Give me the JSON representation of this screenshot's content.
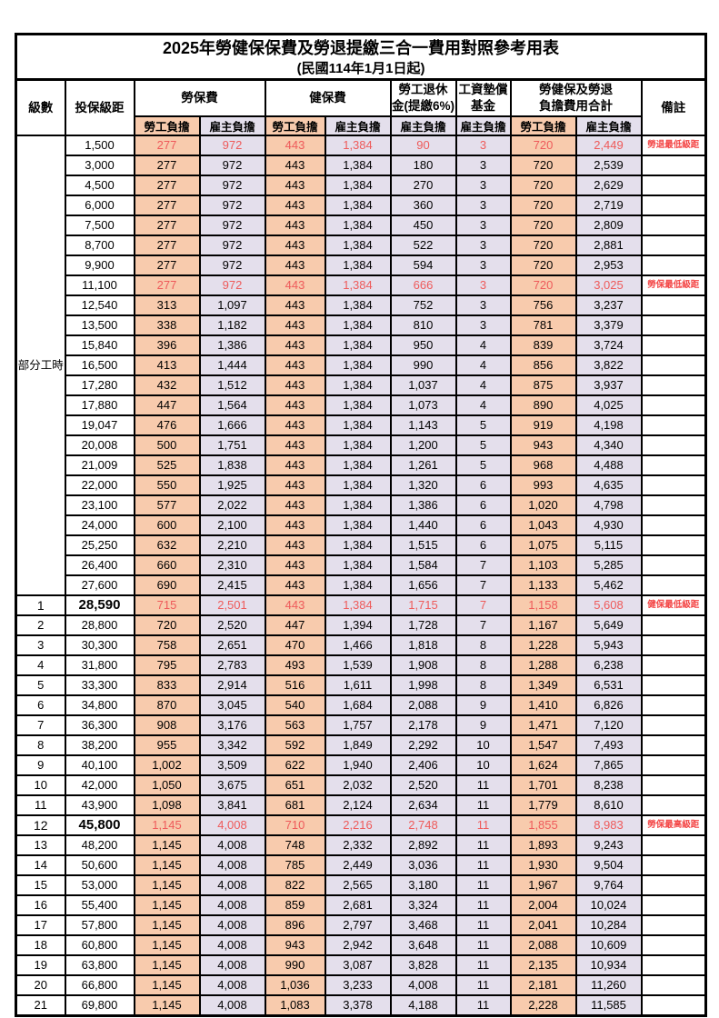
{
  "page": {
    "title": "2025年勞健保保費及勞退提繳三合一費用對照參考用表",
    "subtitle": "(民國114年1月1日起)"
  },
  "colors": {
    "orange": "#F8CBAD",
    "purple": "#E4DFEC",
    "red": "#EE5A5A",
    "remark_red": "#F34444"
  },
  "header": {
    "level": "級數",
    "bracket": "投保級距",
    "labor": "勞保費",
    "health": "健保費",
    "pension_line1": "勞工退休",
    "pension_line2": "金(提繳6%)",
    "wage_fund_line1": "工資墊償",
    "wage_fund_line2": "基金",
    "total_line1": "勞健保及勞退",
    "total_line2": "負擔費用合計",
    "note": "備註",
    "employee": "勞工負擔",
    "employer": "雇主負擔"
  },
  "part_time_label": "部分工時",
  "part_time_rowspan": 23,
  "rows": [
    {
      "level": "",
      "bracket": "1,500",
      "cells": [
        "277",
        "972",
        "443",
        "1,384",
        "90",
        "3",
        "720",
        "2,449"
      ],
      "note": "勞退最低級距",
      "red": true,
      "bold": false
    },
    {
      "level": "",
      "bracket": "3,000",
      "cells": [
        "277",
        "972",
        "443",
        "1,384",
        "180",
        "3",
        "720",
        "2,539"
      ],
      "note": "",
      "red": false,
      "bold": false
    },
    {
      "level": "",
      "bracket": "4,500",
      "cells": [
        "277",
        "972",
        "443",
        "1,384",
        "270",
        "3",
        "720",
        "2,629"
      ],
      "note": "",
      "red": false,
      "bold": false
    },
    {
      "level": "",
      "bracket": "6,000",
      "cells": [
        "277",
        "972",
        "443",
        "1,384",
        "360",
        "3",
        "720",
        "2,719"
      ],
      "note": "",
      "red": false,
      "bold": false
    },
    {
      "level": "",
      "bracket": "7,500",
      "cells": [
        "277",
        "972",
        "443",
        "1,384",
        "450",
        "3",
        "720",
        "2,809"
      ],
      "note": "",
      "red": false,
      "bold": false
    },
    {
      "level": "",
      "bracket": "8,700",
      "cells": [
        "277",
        "972",
        "443",
        "1,384",
        "522",
        "3",
        "720",
        "2,881"
      ],
      "note": "",
      "red": false,
      "bold": false
    },
    {
      "level": "",
      "bracket": "9,900",
      "cells": [
        "277",
        "972",
        "443",
        "1,384",
        "594",
        "3",
        "720",
        "2,953"
      ],
      "note": "",
      "red": false,
      "bold": false
    },
    {
      "level": "",
      "bracket": "11,100",
      "cells": [
        "277",
        "972",
        "443",
        "1,384",
        "666",
        "3",
        "720",
        "3,025"
      ],
      "note": "勞保最低級距",
      "red": true,
      "bold": false
    },
    {
      "level": "",
      "bracket": "12,540",
      "cells": [
        "313",
        "1,097",
        "443",
        "1,384",
        "752",
        "3",
        "756",
        "3,237"
      ],
      "note": "",
      "red": false,
      "bold": false
    },
    {
      "level": "",
      "bracket": "13,500",
      "cells": [
        "338",
        "1,182",
        "443",
        "1,384",
        "810",
        "3",
        "781",
        "3,379"
      ],
      "note": "",
      "red": false,
      "bold": false
    },
    {
      "level": "",
      "bracket": "15,840",
      "cells": [
        "396",
        "1,386",
        "443",
        "1,384",
        "950",
        "4",
        "839",
        "3,724"
      ],
      "note": "",
      "red": false,
      "bold": false
    },
    {
      "level": "",
      "bracket": "16,500",
      "cells": [
        "413",
        "1,444",
        "443",
        "1,384",
        "990",
        "4",
        "856",
        "3,822"
      ],
      "note": "",
      "red": false,
      "bold": false
    },
    {
      "level": "",
      "bracket": "17,280",
      "cells": [
        "432",
        "1,512",
        "443",
        "1,384",
        "1,037",
        "4",
        "875",
        "3,937"
      ],
      "note": "",
      "red": false,
      "bold": false
    },
    {
      "level": "",
      "bracket": "17,880",
      "cells": [
        "447",
        "1,564",
        "443",
        "1,384",
        "1,073",
        "4",
        "890",
        "4,025"
      ],
      "note": "",
      "red": false,
      "bold": false
    },
    {
      "level": "",
      "bracket": "19,047",
      "cells": [
        "476",
        "1,666",
        "443",
        "1,384",
        "1,143",
        "5",
        "919",
        "4,198"
      ],
      "note": "",
      "red": false,
      "bold": false
    },
    {
      "level": "",
      "bracket": "20,008",
      "cells": [
        "500",
        "1,751",
        "443",
        "1,384",
        "1,200",
        "5",
        "943",
        "4,340"
      ],
      "note": "",
      "red": false,
      "bold": false
    },
    {
      "level": "",
      "bracket": "21,009",
      "cells": [
        "525",
        "1,838",
        "443",
        "1,384",
        "1,261",
        "5",
        "968",
        "4,488"
      ],
      "note": "",
      "red": false,
      "bold": false
    },
    {
      "level": "",
      "bracket": "22,000",
      "cells": [
        "550",
        "1,925",
        "443",
        "1,384",
        "1,320",
        "6",
        "993",
        "4,635"
      ],
      "note": "",
      "red": false,
      "bold": false
    },
    {
      "level": "",
      "bracket": "23,100",
      "cells": [
        "577",
        "2,022",
        "443",
        "1,384",
        "1,386",
        "6",
        "1,020",
        "4,798"
      ],
      "note": "",
      "red": false,
      "bold": false
    },
    {
      "level": "",
      "bracket": "24,000",
      "cells": [
        "600",
        "2,100",
        "443",
        "1,384",
        "1,440",
        "6",
        "1,043",
        "4,930"
      ],
      "note": "",
      "red": false,
      "bold": false
    },
    {
      "level": "",
      "bracket": "25,250",
      "cells": [
        "632",
        "2,210",
        "443",
        "1,384",
        "1,515",
        "6",
        "1,075",
        "5,115"
      ],
      "note": "",
      "red": false,
      "bold": false
    },
    {
      "level": "",
      "bracket": "26,400",
      "cells": [
        "660",
        "2,310",
        "443",
        "1,384",
        "1,584",
        "7",
        "1,103",
        "5,285"
      ],
      "note": "",
      "red": false,
      "bold": false
    },
    {
      "level": "",
      "bracket": "27,600",
      "cells": [
        "690",
        "2,415",
        "443",
        "1,384",
        "1,656",
        "7",
        "1,133",
        "5,462"
      ],
      "note": "",
      "red": false,
      "bold": false
    },
    {
      "level": "1",
      "bracket": "28,590",
      "cells": [
        "715",
        "2,501",
        "443",
        "1,384",
        "1,715",
        "7",
        "1,158",
        "5,608"
      ],
      "note": "健保最低級距",
      "red": true,
      "bold": true
    },
    {
      "level": "2",
      "bracket": "28,800",
      "cells": [
        "720",
        "2,520",
        "447",
        "1,394",
        "1,728",
        "7",
        "1,167",
        "5,649"
      ],
      "note": "",
      "red": false,
      "bold": false
    },
    {
      "level": "3",
      "bracket": "30,300",
      "cells": [
        "758",
        "2,651",
        "470",
        "1,466",
        "1,818",
        "8",
        "1,228",
        "5,943"
      ],
      "note": "",
      "red": false,
      "bold": false
    },
    {
      "level": "4",
      "bracket": "31,800",
      "cells": [
        "795",
        "2,783",
        "493",
        "1,539",
        "1,908",
        "8",
        "1,288",
        "6,238"
      ],
      "note": "",
      "red": false,
      "bold": false
    },
    {
      "level": "5",
      "bracket": "33,300",
      "cells": [
        "833",
        "2,914",
        "516",
        "1,611",
        "1,998",
        "8",
        "1,349",
        "6,531"
      ],
      "note": "",
      "red": false,
      "bold": false
    },
    {
      "level": "6",
      "bracket": "34,800",
      "cells": [
        "870",
        "3,045",
        "540",
        "1,684",
        "2,088",
        "9",
        "1,410",
        "6,826"
      ],
      "note": "",
      "red": false,
      "bold": false
    },
    {
      "level": "7",
      "bracket": "36,300",
      "cells": [
        "908",
        "3,176",
        "563",
        "1,757",
        "2,178",
        "9",
        "1,471",
        "7,120"
      ],
      "note": "",
      "red": false,
      "bold": false
    },
    {
      "level": "8",
      "bracket": "38,200",
      "cells": [
        "955",
        "3,342",
        "592",
        "1,849",
        "2,292",
        "10",
        "1,547",
        "7,493"
      ],
      "note": "",
      "red": false,
      "bold": false
    },
    {
      "level": "9",
      "bracket": "40,100",
      "cells": [
        "1,002",
        "3,509",
        "622",
        "1,940",
        "2,406",
        "10",
        "1,624",
        "7,865"
      ],
      "note": "",
      "red": false,
      "bold": false
    },
    {
      "level": "10",
      "bracket": "42,000",
      "cells": [
        "1,050",
        "3,675",
        "651",
        "2,032",
        "2,520",
        "11",
        "1,701",
        "8,238"
      ],
      "note": "",
      "red": false,
      "bold": false
    },
    {
      "level": "11",
      "bracket": "43,900",
      "cells": [
        "1,098",
        "3,841",
        "681",
        "2,124",
        "2,634",
        "11",
        "1,779",
        "8,610"
      ],
      "note": "",
      "red": false,
      "bold": false
    },
    {
      "level": "12",
      "bracket": "45,800",
      "cells": [
        "1,145",
        "4,008",
        "710",
        "2,216",
        "2,748",
        "11",
        "1,855",
        "8,983"
      ],
      "note": "勞保最高級距",
      "red": true,
      "bold": true
    },
    {
      "level": "13",
      "bracket": "48,200",
      "cells": [
        "1,145",
        "4,008",
        "748",
        "2,332",
        "2,892",
        "11",
        "1,893",
        "9,243"
      ],
      "note": "",
      "red": false,
      "bold": false
    },
    {
      "level": "14",
      "bracket": "50,600",
      "cells": [
        "1,145",
        "4,008",
        "785",
        "2,449",
        "3,036",
        "11",
        "1,930",
        "9,504"
      ],
      "note": "",
      "red": false,
      "bold": false
    },
    {
      "level": "15",
      "bracket": "53,000",
      "cells": [
        "1,145",
        "4,008",
        "822",
        "2,565",
        "3,180",
        "11",
        "1,967",
        "9,764"
      ],
      "note": "",
      "red": false,
      "bold": false
    },
    {
      "level": "16",
      "bracket": "55,400",
      "cells": [
        "1,145",
        "4,008",
        "859",
        "2,681",
        "3,324",
        "11",
        "2,004",
        "10,024"
      ],
      "note": "",
      "red": false,
      "bold": false
    },
    {
      "level": "17",
      "bracket": "57,800",
      "cells": [
        "1,145",
        "4,008",
        "896",
        "2,797",
        "3,468",
        "11",
        "2,041",
        "10,284"
      ],
      "note": "",
      "red": false,
      "bold": false
    },
    {
      "level": "18",
      "bracket": "60,800",
      "cells": [
        "1,145",
        "4,008",
        "943",
        "2,942",
        "3,648",
        "11",
        "2,088",
        "10,609"
      ],
      "note": "",
      "red": false,
      "bold": false
    },
    {
      "level": "19",
      "bracket": "63,800",
      "cells": [
        "1,145",
        "4,008",
        "990",
        "3,087",
        "3,828",
        "11",
        "2,135",
        "10,934"
      ],
      "note": "",
      "red": false,
      "bold": false
    },
    {
      "level": "20",
      "bracket": "66,800",
      "cells": [
        "1,145",
        "4,008",
        "1,036",
        "3,233",
        "4,008",
        "11",
        "2,181",
        "11,260"
      ],
      "note": "",
      "red": false,
      "bold": false
    },
    {
      "level": "21",
      "bracket": "69,800",
      "cells": [
        "1,145",
        "4,008",
        "1,083",
        "3,378",
        "4,188",
        "11",
        "2,228",
        "11,585"
      ],
      "note": "",
      "red": false,
      "bold": false
    }
  ]
}
